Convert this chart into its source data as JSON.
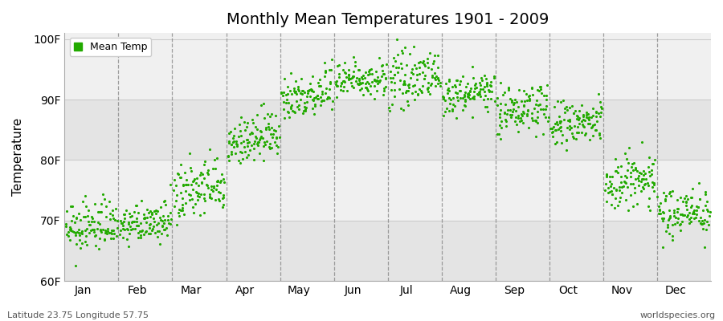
{
  "title": "Monthly Mean Temperatures 1901 - 2009",
  "ylabel": "Temperature",
  "xlabel_labels": [
    "Jan",
    "Feb",
    "Mar",
    "Apr",
    "May",
    "Jun",
    "Jul",
    "Aug",
    "Sep",
    "Oct",
    "Nov",
    "Dec"
  ],
  "ytick_labels": [
    "60F",
    "70F",
    "80F",
    "90F",
    "100F"
  ],
  "ytick_values": [
    60,
    70,
    80,
    90,
    100
  ],
  "ylim": [
    60,
    101
  ],
  "xlim": [
    0,
    12
  ],
  "dot_color": "#22aa00",
  "dot_size": 5,
  "legend_label": "Mean Temp",
  "footer_left": "Latitude 23.75 Longitude 57.75",
  "footer_right": "worldspecies.org",
  "background_color": "#ffffff",
  "plot_bg_color": "#f0f0f0",
  "plot_bg_band_color": "#e4e4e4",
  "n_years": 109,
  "year_start": 1901,
  "year_end": 2009,
  "monthly_means": [
    69.0,
    69.5,
    75.0,
    83.5,
    91.0,
    93.5,
    93.5,
    91.0,
    88.5,
    86.0,
    76.5,
    71.5
  ],
  "monthly_spreads": [
    2.0,
    1.5,
    2.5,
    2.0,
    2.0,
    1.5,
    2.0,
    1.5,
    2.0,
    2.0,
    2.5,
    2.0
  ],
  "monthly_trend": [
    0.015,
    0.01,
    0.02,
    0.02,
    0.015,
    0.01,
    0.01,
    0.01,
    0.01,
    0.01,
    0.01,
    0.01
  ],
  "dashed_line_color": "#888888",
  "grid_color": "#cccccc",
  "spine_color": "#aaaaaa"
}
